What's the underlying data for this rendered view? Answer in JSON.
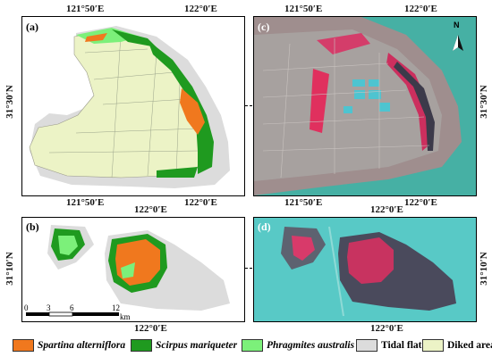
{
  "panels": {
    "a": {
      "label": "(a)",
      "top_lon_left": "121°50′E",
      "top_lon_right": "122°0′E",
      "bottom_lon_left": "121°50′E",
      "bottom_lon_right": "122°0′E",
      "lat_label": "31°30′N"
    },
    "b": {
      "label": "(b)",
      "top_lon": "122°0′E",
      "bottom_lon": "122°0′E",
      "lat_label": "31°10′N"
    },
    "c": {
      "label": "(c)",
      "top_lon_left": "121°50′E",
      "top_lon_right": "122°0′E",
      "bottom_lon_left": "121°50′E",
      "bottom_lon_right": "122°0′E",
      "lat_label": "31°30′N",
      "north_label": "N"
    },
    "d": {
      "label": "(d)",
      "top_lon": "122°0′E",
      "bottom_lon": "122°0′E",
      "lat_label": "31°10′N"
    }
  },
  "scale_bar": {
    "ticks": [
      "0",
      "3",
      "6",
      "12"
    ],
    "unit": "km"
  },
  "legend": [
    {
      "label": "Spartina alterniflora",
      "color": "#f0781e",
      "italic": true
    },
    {
      "label": "Scirpus mariqueter",
      "color": "#1f9a1f",
      "italic": true
    },
    {
      "label": "Phragmites australis",
      "color": "#7cf07a",
      "italic": true
    },
    {
      "label": "Tidal flat",
      "color": "#dcdcdc",
      "italic": false
    },
    {
      "label": "Diked area",
      "color": "#ecf3c6",
      "italic": false
    }
  ]
}
